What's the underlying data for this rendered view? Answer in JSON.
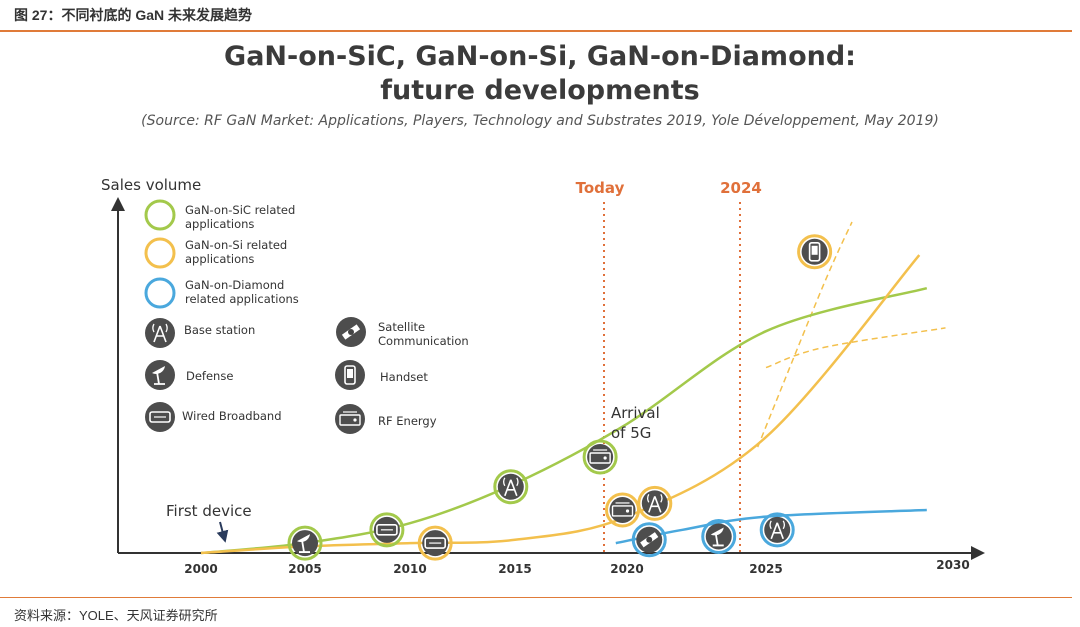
{
  "caption": "图 27：不同衬底的 GaN 未来发展趋势",
  "footer": "资料来源：YOLE、天风证券研究所",
  "chart_data": {
    "type": "line",
    "title_line1": "GaN-on-SiC, GaN-on-Si, GaN-on-Diamond:",
    "title_line2": "future developments",
    "subtitle": "(Source: RF GaN Market: Applications, Players, Technology and Substrates 2019, Yole Développement, May 2019)",
    "ylabel": "Sales volume",
    "x_ticks": [
      "2000",
      "2005",
      "2010",
      "2015",
      "2020",
      "2025",
      "2030"
    ],
    "xlim": [
      2000,
      2030
    ],
    "ylim": [
      0,
      100
    ],
    "markers": [
      {
        "label": "Today",
        "x": 2019.5
      },
      {
        "label": "2024",
        "x": 2024.5
      }
    ],
    "annotations": {
      "first_device": "First device",
      "arrival_5g_line1": "Arrival",
      "arrival_5g_line2": "of 5G"
    },
    "series": [
      {
        "name": "GaN-on-SiC related applications",
        "color": "#a3c94b",
        "x": [
          2000,
          2005,
          2010,
          2015,
          2020,
          2025,
          2029.3
        ],
        "y": [
          0,
          3,
          9,
          21,
          39,
          67,
          80
        ]
      },
      {
        "name": "GaN-on-Si related applications",
        "color": "#f3c04d",
        "x": [
          2000,
          2005,
          2010,
          2015,
          2020,
          2025,
          2029.1
        ],
        "y": [
          0,
          2,
          3,
          4,
          11,
          35,
          90
        ]
      },
      {
        "name": "GaN-on-Diamond related applications",
        "color": "#4aa8dd",
        "x": [
          2019.5,
          2022,
          2025,
          2029.3
        ],
        "y": [
          3,
          7,
          11,
          13
        ]
      }
    ],
    "projections": [
      {
        "color": "#f3c04d",
        "x": [
          2025,
          2026.5,
          2029.8
        ],
        "y": [
          56,
          62,
          68
        ]
      },
      {
        "color": "#f3c04d",
        "x": [
          2024.7,
          2026.5,
          2027.3
        ],
        "y": [
          32,
          80,
          100
        ]
      }
    ],
    "legend": {
      "series": [
        {
          "label_line1": "GaN-on-SiC related",
          "label_line2": "applications",
          "color": "#a3c94b"
        },
        {
          "label_line1": "GaN-on-Si related",
          "label_line2": "applications",
          "color": "#f3c04d"
        },
        {
          "label_line1": "GaN-on-Diamond",
          "label_line2": "related applications",
          "color": "#4aa8dd"
        }
      ],
      "applications": [
        {
          "label_line1": "Base station",
          "label_line2": "",
          "icon": "base-station-icon"
        },
        {
          "label_line1": "Satellite",
          "label_line2": "Communication",
          "icon": "satellite-icon"
        },
        {
          "label_line1": "Defense",
          "label_line2": "",
          "icon": "defense-radar-icon"
        },
        {
          "label_line1": "Handset",
          "label_line2": "",
          "icon": "handset-icon"
        },
        {
          "label_line1": "Wired Broadband",
          "label_line2": "",
          "icon": "wired-broadband-icon"
        },
        {
          "label_line1": "RF Energy",
          "label_line2": "",
          "icon": "rf-energy-icon"
        }
      ]
    },
    "application_points": [
      {
        "icon": "defense-radar-icon",
        "ring": "#a3c94b",
        "x": 2005,
        "y": 3
      },
      {
        "icon": "wired-broadband-icon",
        "ring": "#a3c94b",
        "x": 2008.9,
        "y": 7
      },
      {
        "icon": "wired-broadband-icon",
        "ring": "#f3c04d",
        "x": 2011.2,
        "y": 3
      },
      {
        "icon": "base-station-icon",
        "ring": "#a3c94b",
        "x": 2014.8,
        "y": 20
      },
      {
        "icon": "rf-energy-icon",
        "ring": "#a3c94b",
        "x": 2018.8,
        "y": 29
      },
      {
        "icon": "rf-energy-icon",
        "ring": "#f3c04d",
        "x": 2019.8,
        "y": 13
      },
      {
        "icon": "base-station-icon",
        "ring": "#f3c04d",
        "x": 2021,
        "y": 15
      },
      {
        "icon": "satellite-icon",
        "ring": "#4aa8dd",
        "x": 2020.8,
        "y": 4
      },
      {
        "icon": "defense-radar-icon",
        "ring": "#4aa8dd",
        "x": 2023.3,
        "y": 5
      },
      {
        "icon": "base-station-icon",
        "ring": "#4aa8dd",
        "x": 2025.3,
        "y": 7
      },
      {
        "icon": "handset-icon",
        "ring": "#f3c04d",
        "x": 2026.3,
        "y": 91
      }
    ]
  }
}
